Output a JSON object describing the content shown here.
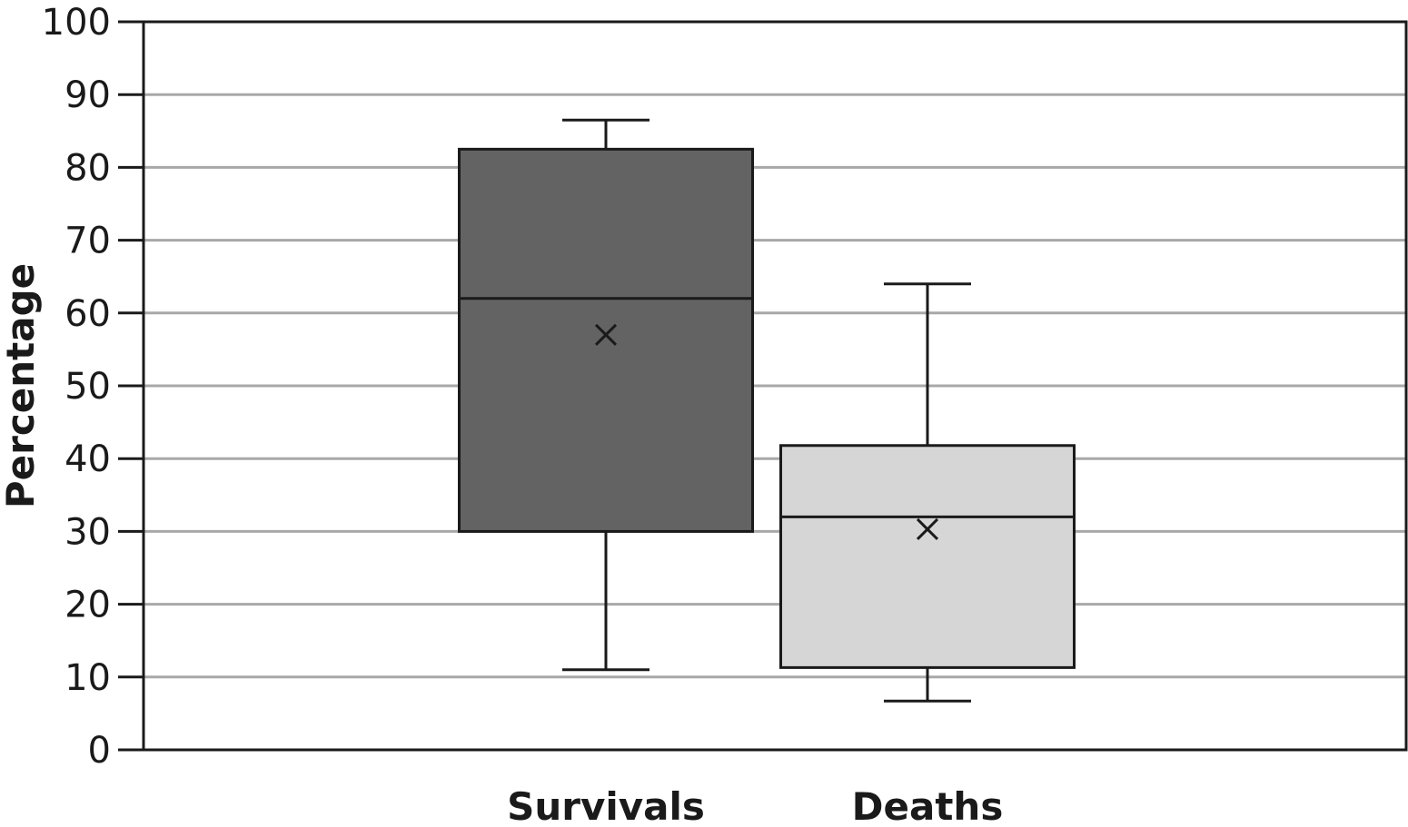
{
  "chart_data": {
    "type": "box",
    "title": "",
    "xlabel": "",
    "ylabel": "Percentage",
    "ylim": [
      0,
      100
    ],
    "yticks": [
      0,
      10,
      20,
      30,
      40,
      50,
      60,
      70,
      80,
      90,
      100
    ],
    "grid": true,
    "legend": "none",
    "categories": [
      "Survivals",
      "Deaths"
    ],
    "boxes": [
      {
        "category": "Survivals",
        "min": 11,
        "q1": 30,
        "median": 62,
        "q3": 82.5,
        "max": 86.5,
        "mean": 57,
        "fill": "#636363"
      },
      {
        "category": "Deaths",
        "min": 6.7,
        "q1": 11.3,
        "median": 32,
        "q3": 41.8,
        "max": 64,
        "mean": 30.3,
        "fill": "#d6d6d6"
      }
    ],
    "colors": {
      "grid": "#a8a8a8",
      "axis": "#1a1a1a",
      "box_stroke": "#1a1a1a"
    }
  }
}
